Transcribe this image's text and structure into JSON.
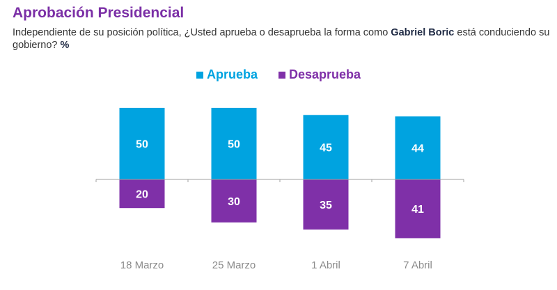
{
  "title": "Aprobación Presidencial",
  "subtitle": {
    "pre": "Independiente de su posición política, ¿Usted aprueba o desaprueba la forma como ",
    "bold": "Gabriel Boric",
    "post": " está conduciendo su gobierno? ",
    "unit": "%"
  },
  "colors": {
    "aprueba": "#00a3e0",
    "desaprueba": "#7f30a8"
  },
  "chart_data": {
    "type": "bar",
    "title": "Aprobación Presidencial",
    "categories": [
      "18 Marzo",
      "25 Marzo",
      "1 Abril",
      "7 Abril"
    ],
    "series": [
      {
        "name": "Aprueba",
        "values": [
          50,
          50,
          45,
          44
        ]
      },
      {
        "name": "Desaprueba",
        "values": [
          20,
          30,
          35,
          41
        ]
      }
    ],
    "legend": "top-center",
    "xlabel": "",
    "ylabel": "%"
  }
}
